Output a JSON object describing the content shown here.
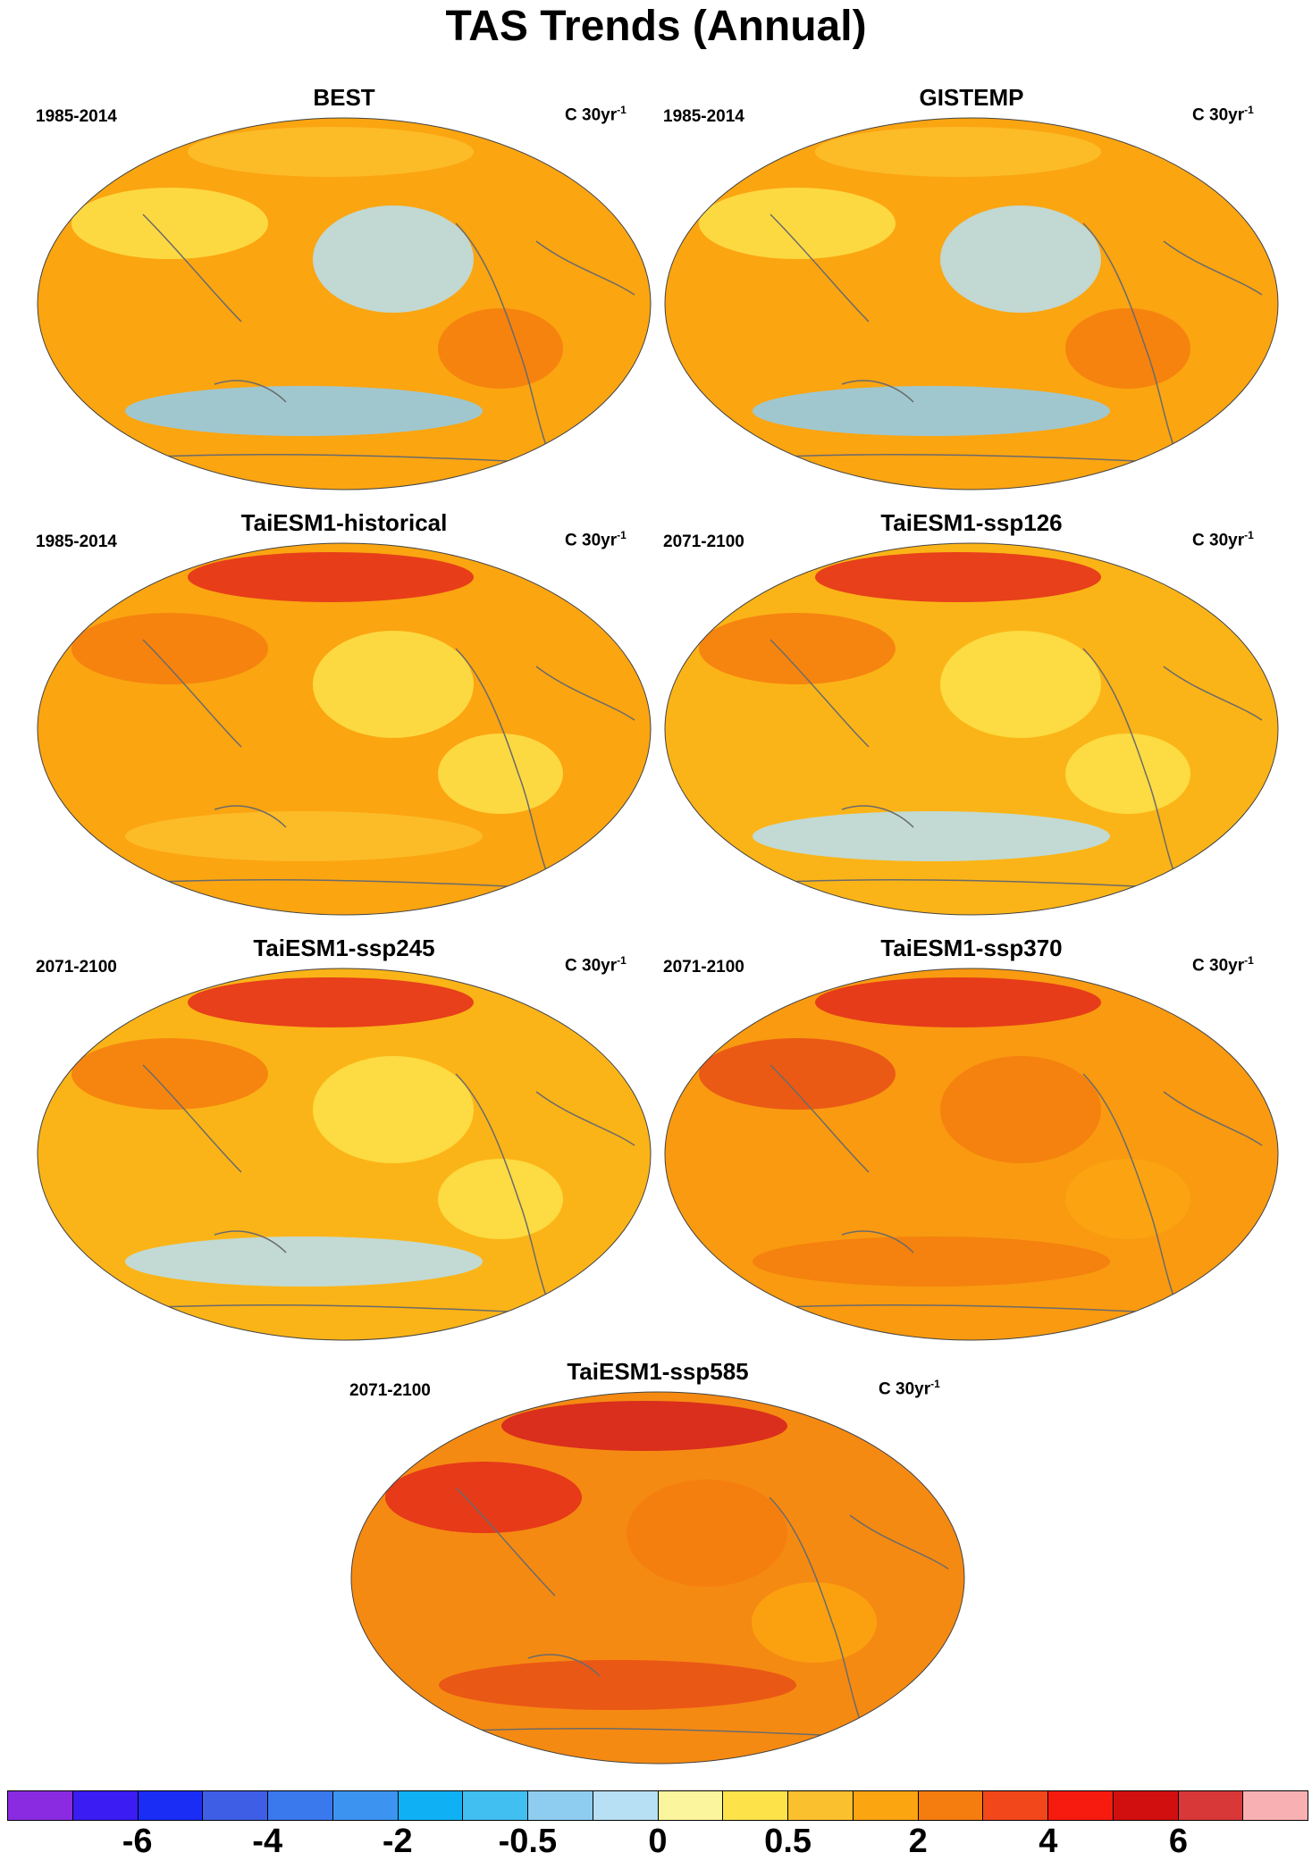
{
  "figure": {
    "title": "TAS Trends (Annual)"
  },
  "panels": [
    {
      "title": "BEST",
      "period": "1985-2014",
      "units_main": "C 30yr",
      "units_sup": "-1",
      "fill_color": "#fba511",
      "blob_colors": [
        "#b7e0f5",
        "#8fcdf0",
        "#fde24a",
        "#fbc02d",
        "#f57c0e"
      ]
    },
    {
      "title": "GISTEMP",
      "period": "1985-2014",
      "units_main": "C 30yr",
      "units_sup": "-1",
      "fill_color": "#fba511",
      "blob_colors": [
        "#b7e0f5",
        "#8fcdf0",
        "#fde24a",
        "#fbc02d",
        "#f57c0e"
      ]
    },
    {
      "title": "TaiESM1-historical",
      "period": "1985-2014",
      "units_main": "C 30yr",
      "units_sup": "-1",
      "fill_color": "#fba511",
      "blob_colors": [
        "#fde24a",
        "#fbc02d",
        "#f57c0e",
        "#e32c1b",
        "#fde24a"
      ]
    },
    {
      "title": "TaiESM1-ssp126",
      "period": "2071-2100",
      "units_main": "C 30yr",
      "units_sup": "-1",
      "fill_color": "#fbb417",
      "blob_colors": [
        "#fde24a",
        "#b7e0f5",
        "#f57c0e",
        "#e32c1b",
        "#fde24a"
      ]
    },
    {
      "title": "TaiESM1-ssp245",
      "period": "2071-2100",
      "units_main": "C 30yr",
      "units_sup": "-1",
      "fill_color": "#fbb417",
      "blob_colors": [
        "#fde24a",
        "#b7e0f5",
        "#f57c0e",
        "#e32c1b",
        "#fde24a"
      ]
    },
    {
      "title": "TaiESM1-ssp370",
      "period": "2071-2100",
      "units_main": "C 30yr",
      "units_sup": "-1",
      "fill_color": "#f99a10",
      "blob_colors": [
        "#f57c0e",
        "#f57c0e",
        "#e84f16",
        "#e32c1b",
        "#fba511"
      ]
    },
    {
      "title": "TaiESM1-ssp585",
      "period": "2071-2100",
      "units_main": "C 30yr",
      "units_sup": "-1",
      "fill_color": "#f58a12",
      "blob_colors": [
        "#f57c0e",
        "#e84f16",
        "#e32c1b",
        "#d51f1f",
        "#fba511"
      ]
    }
  ],
  "colorbar": {
    "colors": [
      "#8a2be2",
      "#3b1cf2",
      "#1a2df5",
      "#3f5ee6",
      "#3a78ee",
      "#3d94f0",
      "#10b1f4",
      "#41bff0",
      "#8fcdf0",
      "#b7e0f5",
      "#fbf59e",
      "#fde24a",
      "#fbc02d",
      "#fba511",
      "#f57c0e",
      "#f2461b",
      "#f71a0f",
      "#d10f0f",
      "#d83838",
      "#f9b0b3"
    ],
    "labels": [
      "-6",
      "-4",
      "-2",
      "-0.5",
      "0",
      "0.5",
      "2",
      "4",
      "6"
    ],
    "label_boundary_index": [
      2,
      4,
      6,
      8,
      10,
      12,
      14,
      16,
      18
    ]
  }
}
